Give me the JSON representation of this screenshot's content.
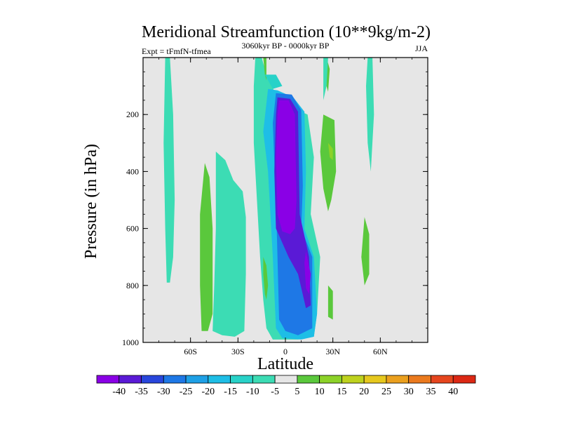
{
  "chart_data": {
    "type": "heatmap",
    "title": "Meridional Streamfunction (10**9kg/m-2)",
    "subtitle_left": "Expt = tFmfN-tfmea",
    "subtitle_center": "3060kyr BP - 0000kyr BP",
    "subtitle_right": "JJA",
    "xlabel": "Latitude",
    "ylabel": "Pressure (in hPa)",
    "xlim": [
      -90,
      90
    ],
    "ylim": [
      0,
      1000
    ],
    "x_ticks": [
      {
        "value": -60,
        "label": "60S"
      },
      {
        "value": -30,
        "label": "30S"
      },
      {
        "value": 0,
        "label": "0"
      },
      {
        "value": 30,
        "label": "30N"
      },
      {
        "value": 60,
        "label": "60N"
      }
    ],
    "y_ticks": [
      {
        "value": 200,
        "label": "200"
      },
      {
        "value": 400,
        "label": "400"
      },
      {
        "value": 600,
        "label": "600"
      },
      {
        "value": 800,
        "label": "800"
      },
      {
        "value": 1000,
        "label": "1000"
      }
    ],
    "colorbar": {
      "levels": [
        -40,
        -35,
        -30,
        -25,
        -20,
        -15,
        -10,
        -5,
        5,
        10,
        15,
        20,
        25,
        30,
        35,
        40
      ],
      "labels": [
        "-40",
        "-35",
        "-30",
        "-25",
        "-20",
        "-15",
        "-10",
        "-5",
        "5",
        "10",
        "15",
        "20",
        "25",
        "30",
        "35",
        "40"
      ],
      "colors": [
        "#8a00e6",
        "#5a1ad6",
        "#2846dc",
        "#1e78e6",
        "#1ea0e6",
        "#1ebee6",
        "#28d2c8",
        "#3cdcb4",
        "#e6e6e6",
        "#5ac83c",
        "#8cd228",
        "#bed21e",
        "#e6c81e",
        "#eba01e",
        "#eb7a1e",
        "#e6461e",
        "#dc2814"
      ]
    },
    "background_value": 0,
    "regions": [
      {
        "name": "cyan-band-70S",
        "level": -5,
        "polygon": [
          [
            -76,
            0
          ],
          [
            -73,
            0
          ],
          [
            -71,
            200
          ],
          [
            -70,
            500
          ],
          [
            -71,
            700
          ],
          [
            -73,
            790
          ],
          [
            -75,
            790
          ],
          [
            -76,
            600
          ],
          [
            -77,
            300
          ]
        ]
      },
      {
        "name": "green-band-60S",
        "level": 5,
        "polygon": [
          [
            -51,
            370
          ],
          [
            -48,
            420
          ],
          [
            -46,
            600
          ],
          [
            -46,
            900
          ],
          [
            -49,
            960
          ],
          [
            -53,
            960
          ],
          [
            -54,
            800
          ],
          [
            -54,
            550
          ]
        ]
      },
      {
        "name": "cyan-wide-south",
        "level": -5,
        "polygon": [
          [
            -44,
            330
          ],
          [
            -38,
            360
          ],
          [
            -33,
            430
          ],
          [
            -27,
            470
          ],
          [
            -25,
            560
          ],
          [
            -25,
            760
          ],
          [
            -26,
            960
          ],
          [
            -32,
            980
          ],
          [
            -40,
            975
          ],
          [
            -46,
            960
          ],
          [
            -45,
            800
          ],
          [
            -44,
            600
          ]
        ]
      },
      {
        "name": "cyan-main-plume",
        "level": -5,
        "polygon": [
          [
            -19,
            0
          ],
          [
            -15,
            0
          ],
          [
            -12,
            60
          ],
          [
            -8,
            100
          ],
          [
            -5,
            200
          ],
          [
            6,
            180
          ],
          [
            14,
            200
          ],
          [
            18,
            350
          ],
          [
            16,
            550
          ],
          [
            22,
            700
          ],
          [
            20,
            900
          ],
          [
            18,
            980
          ],
          [
            8,
            990
          ],
          [
            -8,
            990
          ],
          [
            -12,
            950
          ],
          [
            -14,
            850
          ],
          [
            -16,
            700
          ],
          [
            -18,
            500
          ],
          [
            -20,
            300
          ],
          [
            -20,
            100
          ]
        ]
      },
      {
        "name": "green-spike-15S",
        "level": 5,
        "polygon": [
          [
            -14,
            0
          ],
          [
            -12,
            0
          ],
          [
            -12,
            80
          ],
          [
            -13,
            60
          ]
        ]
      },
      {
        "name": "green-sliver-15S",
        "level": 5,
        "polygon": [
          [
            -14,
            700
          ],
          [
            -12,
            730
          ],
          [
            -11,
            800
          ],
          [
            -12,
            850
          ],
          [
            -13,
            830
          ],
          [
            -14,
            760
          ]
        ]
      },
      {
        "name": "light-blue-inner",
        "level": -15,
        "polygon": [
          [
            -11,
            110
          ],
          [
            -5,
            115
          ],
          [
            5,
            140
          ],
          [
            12,
            190
          ],
          [
            13,
            400
          ],
          [
            12,
            600
          ],
          [
            18,
            700
          ],
          [
            20,
            900
          ],
          [
            18,
            980
          ],
          [
            10,
            990
          ],
          [
            -2,
            985
          ],
          [
            -6,
            950
          ],
          [
            -8,
            700
          ],
          [
            -11,
            400
          ],
          [
            -14,
            260
          ]
        ]
      },
      {
        "name": "cyan-inner-top",
        "level": -10,
        "polygon": [
          [
            -13,
            60
          ],
          [
            -6,
            60
          ],
          [
            -2,
            100
          ],
          [
            -8,
            110
          ]
        ]
      },
      {
        "name": "blue-inner",
        "level": -25,
        "polygon": [
          [
            -6,
            125
          ],
          [
            4,
            130
          ],
          [
            10,
            185
          ],
          [
            11,
            450
          ],
          [
            10,
            600
          ],
          [
            17,
            700
          ],
          [
            17,
            950
          ],
          [
            8,
            975
          ],
          [
            0,
            960
          ],
          [
            -4,
            920
          ],
          [
            -5,
            700
          ],
          [
            -6,
            500
          ],
          [
            -8,
            230
          ]
        ]
      },
      {
        "name": "indigo-inner",
        "level": -35,
        "polygon": [
          [
            -5,
            140
          ],
          [
            3,
            145
          ],
          [
            8,
            190
          ],
          [
            9,
            550
          ],
          [
            15,
            700
          ],
          [
            16,
            870
          ],
          [
            13,
            880
          ],
          [
            8,
            760
          ],
          [
            2,
            700
          ],
          [
            -2,
            650
          ],
          [
            -6,
            600
          ],
          [
            -7,
            400
          ],
          [
            -6,
            200
          ]
        ]
      },
      {
        "name": "purple-core",
        "level": -40,
        "polygon": [
          [
            -4,
            150
          ],
          [
            2,
            150
          ],
          [
            6,
            200
          ],
          [
            7,
            500
          ],
          [
            6,
            600
          ],
          [
            3,
            620
          ],
          [
            -2,
            610
          ],
          [
            -5,
            550
          ],
          [
            -6,
            350
          ],
          [
            -5,
            200
          ]
        ]
      },
      {
        "name": "purple-core-low",
        "level": -40,
        "polygon": [
          [
            13,
            680
          ],
          [
            16,
            760
          ],
          [
            15,
            830
          ],
          [
            13,
            810
          ],
          [
            12,
            720
          ]
        ]
      },
      {
        "name": "green-20N-band",
        "level": 5,
        "polygon": [
          [
            26,
            0
          ],
          [
            28,
            40
          ],
          [
            27,
            120
          ],
          [
            26,
            100
          ]
        ]
      },
      {
        "name": "green-25N-oval",
        "level": 5,
        "polygon": [
          [
            24,
            200
          ],
          [
            31,
            220
          ],
          [
            32,
            400
          ],
          [
            29,
            500
          ],
          [
            27,
            540
          ],
          [
            24,
            460
          ],
          [
            22,
            330
          ]
        ]
      },
      {
        "name": "yellowgreen-25N",
        "level": 10,
        "polygon": [
          [
            27,
            300
          ],
          [
            30,
            320
          ],
          [
            30,
            360
          ],
          [
            28,
            350
          ]
        ]
      },
      {
        "name": "green-25N-low",
        "level": 5,
        "polygon": [
          [
            27,
            800
          ],
          [
            30,
            820
          ],
          [
            30,
            920
          ],
          [
            27,
            910
          ]
        ]
      },
      {
        "name": "green-50N",
        "level": 5,
        "polygon": [
          [
            50,
            560
          ],
          [
            53,
            620
          ],
          [
            53,
            760
          ],
          [
            50,
            800
          ],
          [
            48,
            700
          ]
        ]
      },
      {
        "name": "cyan-50N-strip",
        "level": -5,
        "polygon": [
          [
            52,
            0
          ],
          [
            55,
            0
          ],
          [
            56,
            200
          ],
          [
            54,
            400
          ],
          [
            52,
            300
          ],
          [
            51,
            100
          ]
        ]
      },
      {
        "name": "cyan-20N",
        "level": -5,
        "polygon": [
          [
            24,
            0
          ],
          [
            27,
            0
          ],
          [
            26,
            100
          ],
          [
            24,
            150
          ]
        ]
      }
    ]
  }
}
